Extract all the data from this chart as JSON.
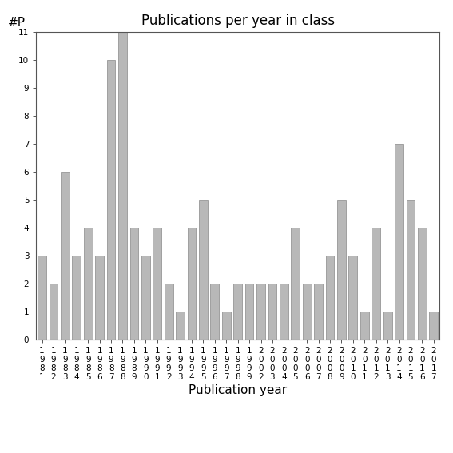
{
  "title": "Publications per year in class",
  "xlabel": "Publication year",
  "ylabel": "#P",
  "bar_color": "#b8b8b8",
  "bar_edge_color": "#888888",
  "years": [
    "1981",
    "1982",
    "1983",
    "1984",
    "1985",
    "1986",
    "1987",
    "1988",
    "1989",
    "1990",
    "1991",
    "1992",
    "1993",
    "1994",
    "1995",
    "1996",
    "1997",
    "1998",
    "1999",
    "2002",
    "2003",
    "2004",
    "2005",
    "2006",
    "2007",
    "2008",
    "2009",
    "2010",
    "2011",
    "2012",
    "2013",
    "2014",
    "2015",
    "2016",
    "2017"
  ],
  "values": [
    3,
    2,
    6,
    3,
    4,
    3,
    10,
    11,
    4,
    3,
    4,
    2,
    1,
    4,
    5,
    2,
    1,
    2,
    2,
    2,
    2,
    2,
    4,
    2,
    2,
    3,
    5,
    3,
    1,
    4,
    1,
    7,
    5,
    4,
    1
  ],
  "ylim": [
    0,
    11
  ],
  "yticks": [
    0,
    1,
    2,
    3,
    4,
    5,
    6,
    7,
    8,
    9,
    10,
    11
  ],
  "background_color": "#ffffff",
  "title_fontsize": 12,
  "xlabel_fontsize": 11,
  "tick_fontsize": 7.5
}
